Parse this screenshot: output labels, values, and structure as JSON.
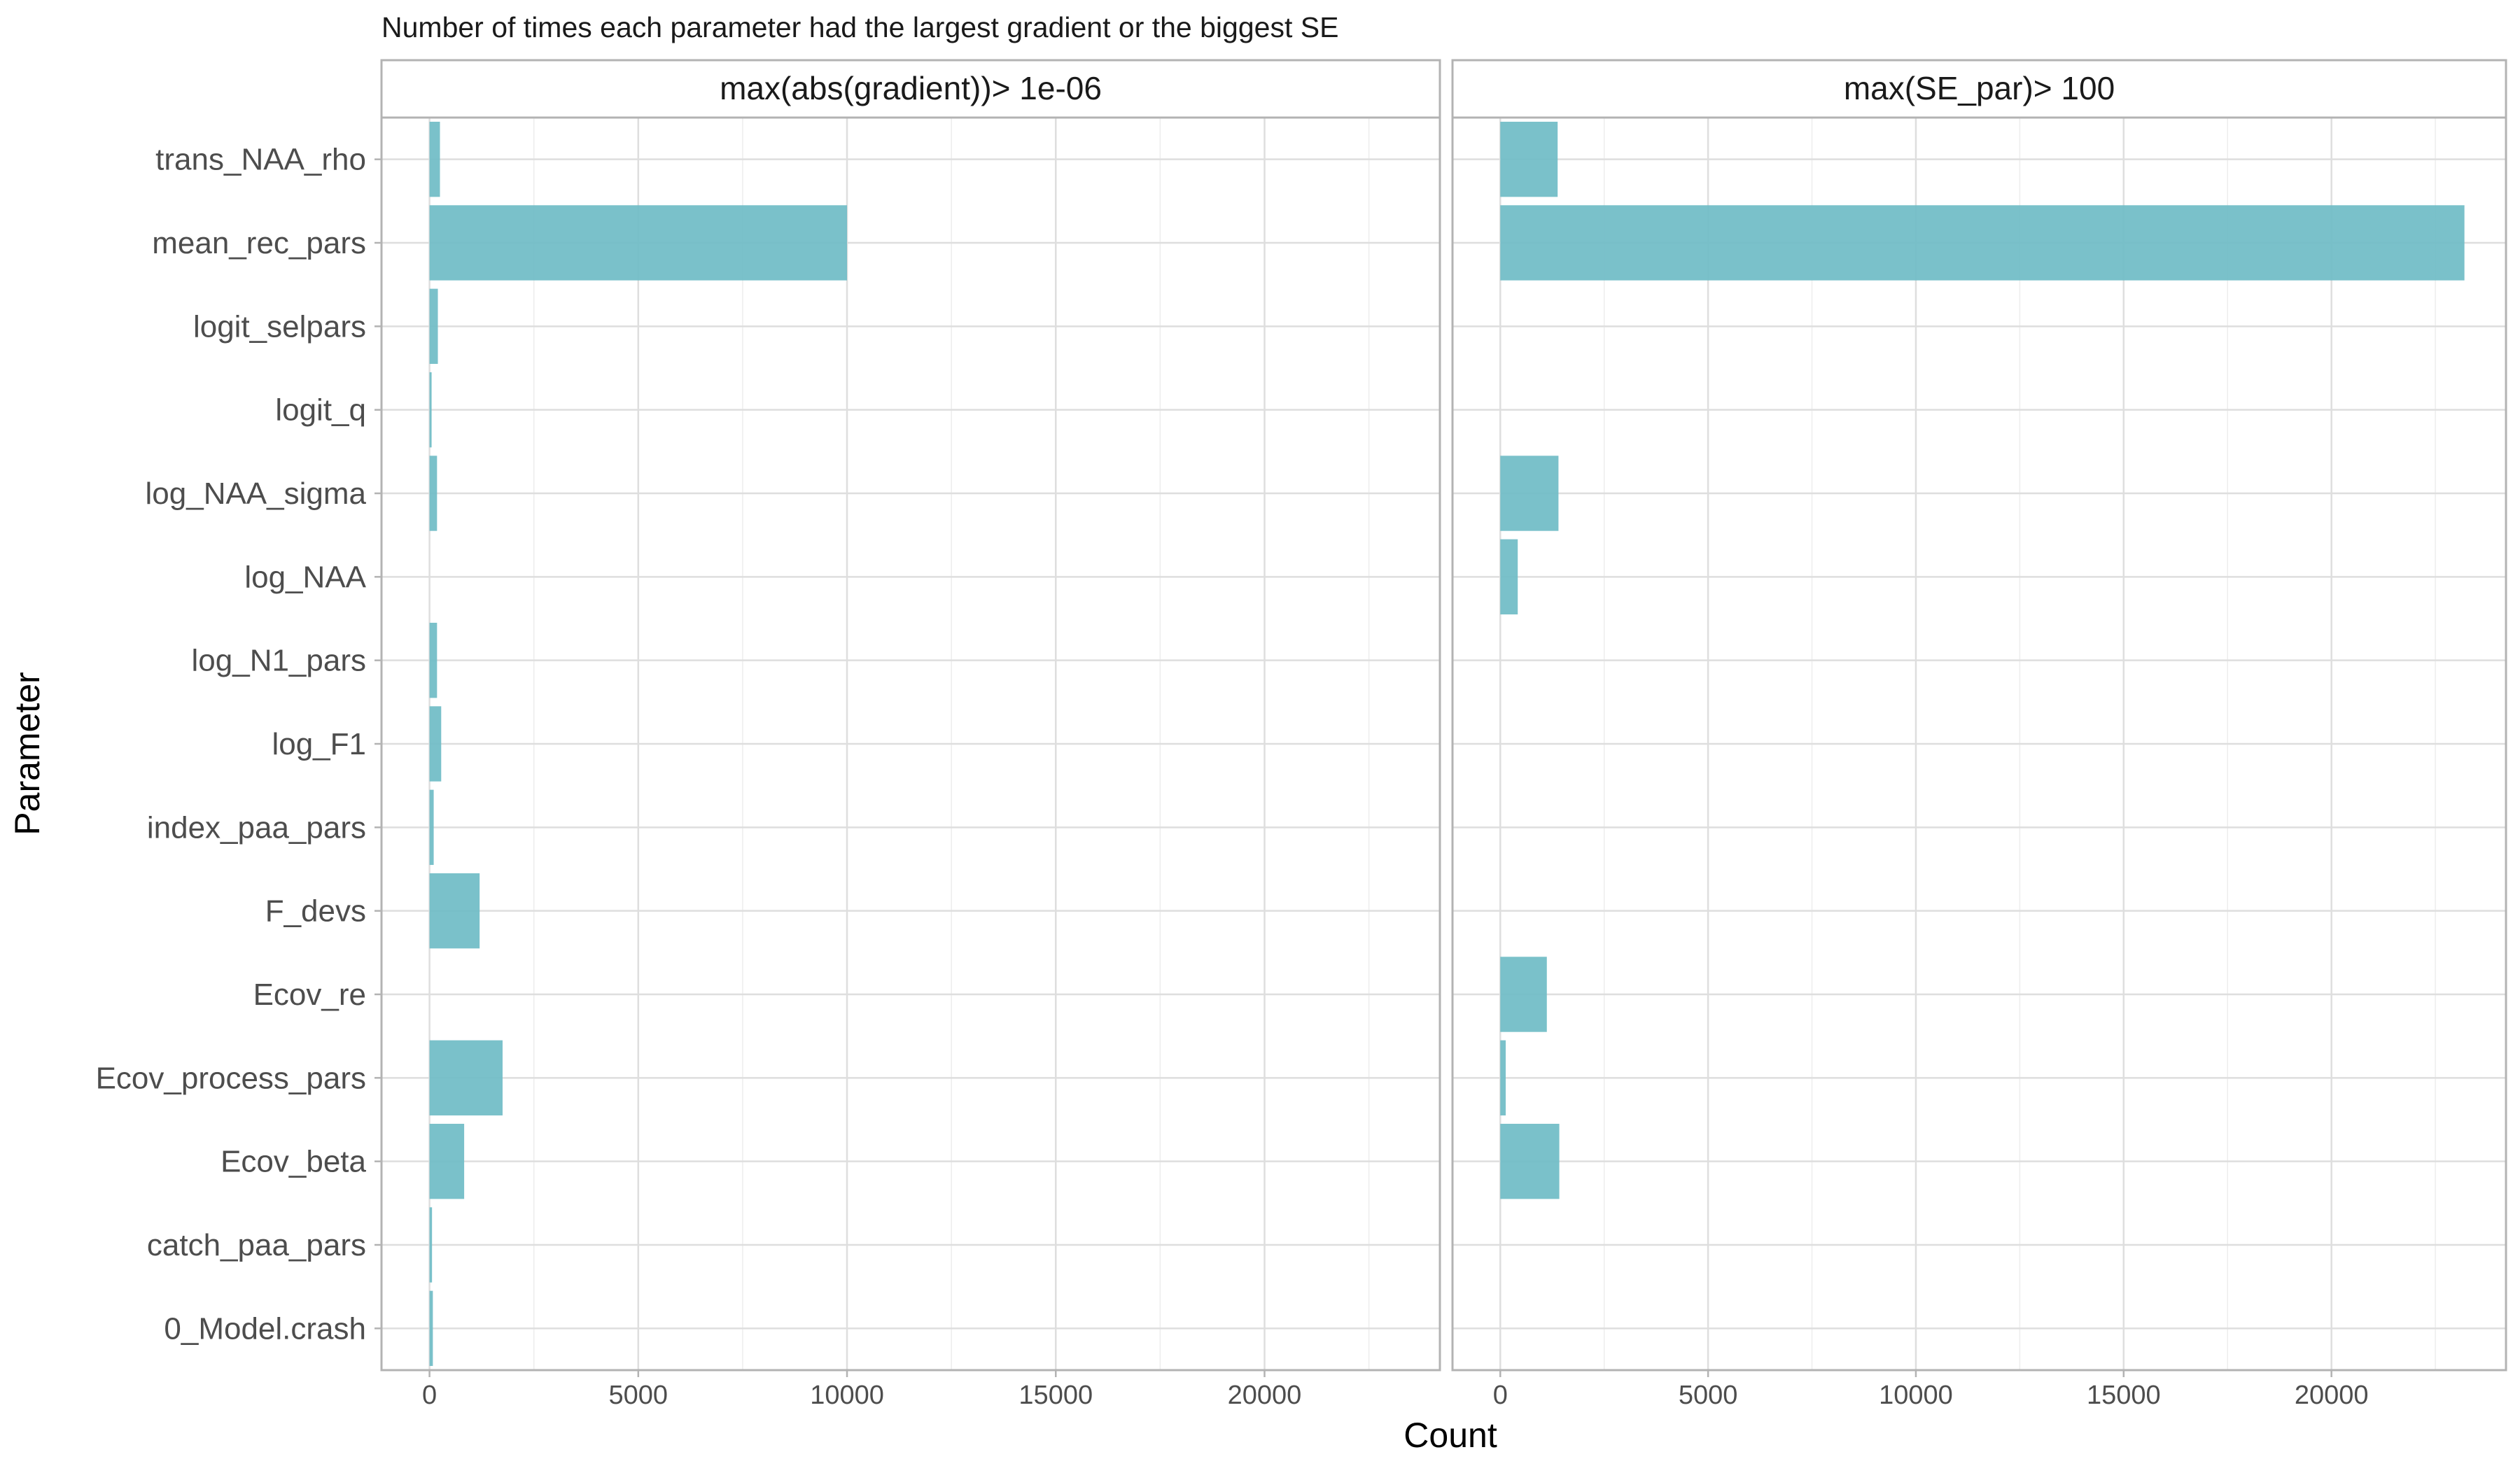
{
  "chart_data": {
    "type": "bar",
    "orientation": "horizontal",
    "title": "Number of times each parameter had the largest gradient or the biggest SE",
    "xlabel": "Count",
    "ylabel": "Parameter",
    "xlim": [
      -1150,
      24200
    ],
    "xticks": [
      0,
      5000,
      10000,
      15000,
      20000
    ],
    "tick_labels": [
      "0",
      "5000",
      "10000",
      "15000",
      "20000"
    ],
    "grid": true,
    "bar_color": "#6FBCC5",
    "categories": [
      "trans_NAA_rho",
      "mean_rec_pars",
      "logit_selpars",
      "logit_q",
      "log_NAA_sigma",
      "log_NAA",
      "log_N1_pars",
      "log_F1",
      "index_paa_pars",
      "F_devs",
      "Ecov_re",
      "Ecov_process_pars",
      "Ecov_beta",
      "catch_paa_pars",
      "0_Model.crash"
    ],
    "panels": [
      {
        "name": "max(abs(gradient))> 1e-06",
        "values": [
          250,
          10000,
          200,
          50,
          180,
          0,
          180,
          280,
          100,
          1200,
          0,
          1750,
          830,
          60,
          80
        ]
      },
      {
        "name": "max(SE_par)> 100",
        "values": [
          1380,
          23200,
          0,
          0,
          1400,
          420,
          0,
          0,
          0,
          0,
          1120,
          130,
          1420,
          0,
          0
        ]
      }
    ]
  }
}
